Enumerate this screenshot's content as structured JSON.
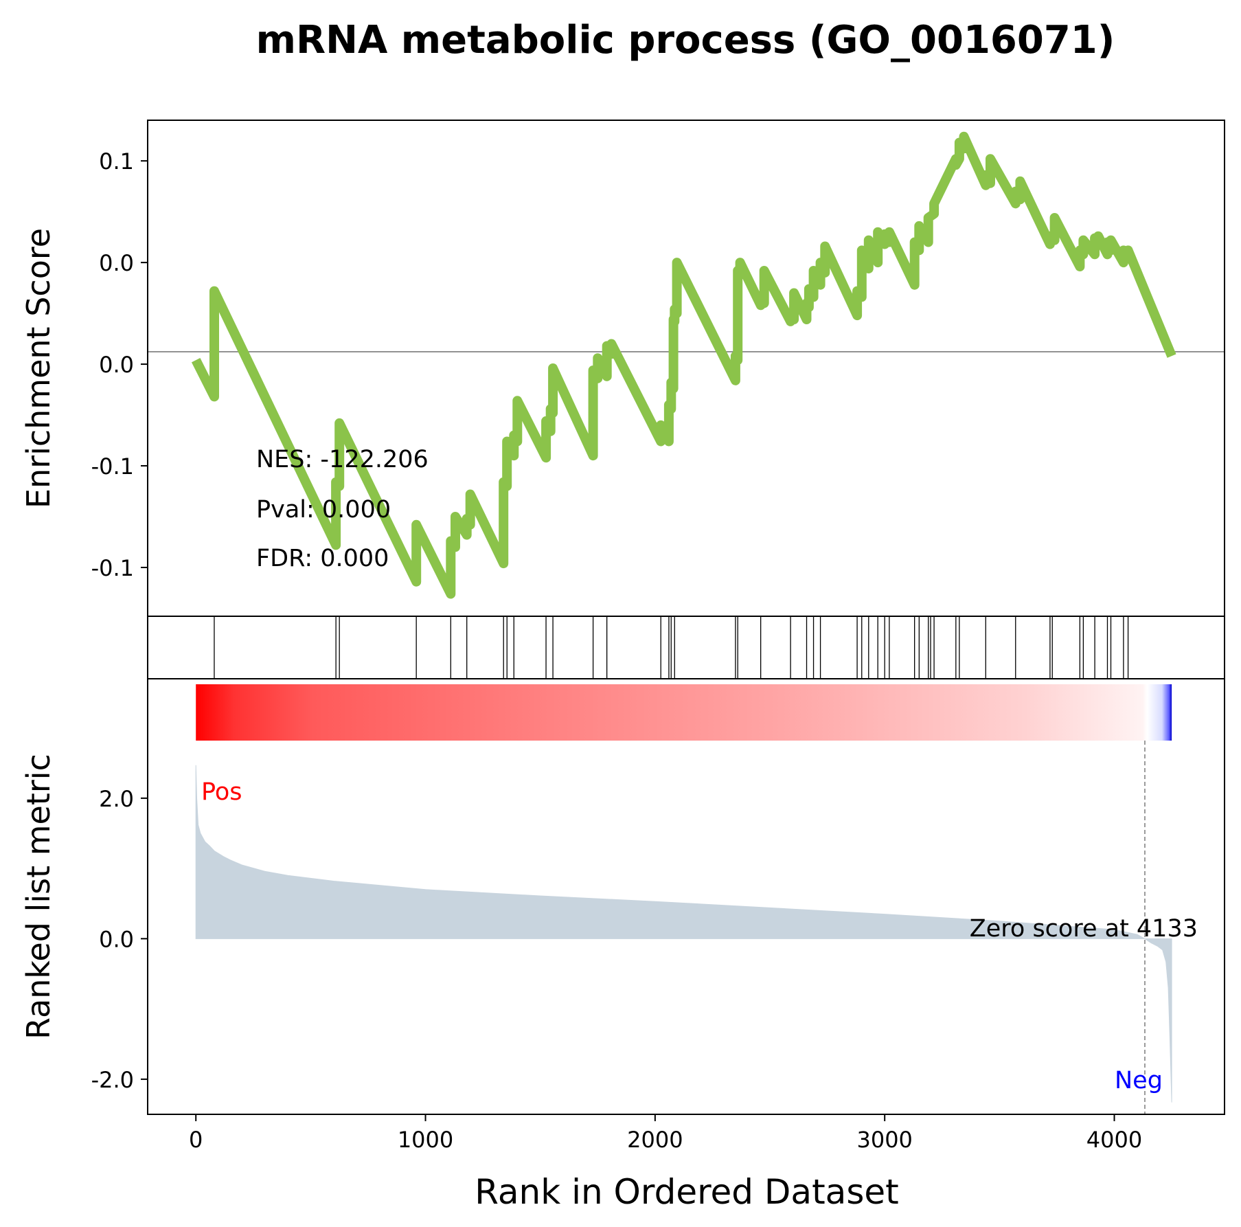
{
  "chart_data": {
    "type": "line",
    "title": "mRNA metabolic process (GO_0016071)",
    "es_panel": {
      "ylabel": "Enrichment Score",
      "ytick_labels": [
        "0.1",
        "0.0",
        "0.0",
        "-0.1",
        "-0.1"
      ],
      "ytick_values": [
        0.1,
        0.05,
        0.0,
        -0.05,
        -0.1
      ],
      "ylim": [
        -0.124,
        0.12
      ],
      "zero_line": 0.0,
      "line_color": "#8bc34a",
      "es_curve": {
        "x": [
          0,
          80,
          80,
          610,
          610,
          625,
          625,
          960,
          960,
          1110,
          1110,
          1130,
          1130,
          1180,
          1180,
          1195,
          1195,
          1340,
          1340,
          1355,
          1355,
          1385,
          1385,
          1400,
          1400,
          1525,
          1525,
          1545,
          1545,
          1555,
          1555,
          1730,
          1730,
          1750,
          1750,
          1790,
          1790,
          1810,
          1810,
          2025,
          2025,
          2060,
          2060,
          2070,
          2070,
          2080,
          2080,
          2085,
          2085,
          2095,
          2095,
          2350,
          2350,
          2360,
          2360,
          2370,
          2370,
          2460,
          2460,
          2475,
          2475,
          2590,
          2590,
          2605,
          2605,
          2660,
          2660,
          2670,
          2670,
          2690,
          2690,
          2720,
          2720,
          2740,
          2740,
          2880,
          2880,
          2900,
          2900,
          2930,
          2930,
          2970,
          2970,
          3000,
          3000,
          3020,
          3020,
          3130,
          3130,
          3150,
          3150,
          3190,
          3190,
          3215,
          3215,
          3310,
          3310,
          3325,
          3325,
          3345,
          3345,
          3440,
          3440,
          3460,
          3460,
          3570,
          3570,
          3590,
          3590,
          3720,
          3720,
          3740,
          3740,
          3850,
          3850,
          3865,
          3865,
          3915,
          3915,
          3930,
          3930,
          3970,
          3970,
          3985,
          3985,
          4040,
          4040,
          4060,
          4060,
          4250
        ],
        "y": [
          0.002,
          -0.016,
          0.036,
          -0.089,
          -0.058,
          -0.06,
          -0.029,
          -0.107,
          -0.079,
          -0.113,
          -0.087,
          -0.09,
          -0.075,
          -0.084,
          -0.076,
          -0.079,
          -0.064,
          -0.098,
          -0.058,
          -0.06,
          -0.038,
          -0.045,
          -0.035,
          -0.038,
          -0.018,
          -0.046,
          -0.028,
          -0.033,
          -0.022,
          -0.024,
          -0.002,
          -0.045,
          -0.003,
          -0.007,
          0.003,
          -0.006,
          0.009,
          0.005,
          0.01,
          -0.038,
          -0.03,
          -0.038,
          -0.02,
          -0.022,
          -0.009,
          -0.012,
          0.022,
          0.021,
          0.027,
          0.025,
          0.05,
          -0.008,
          0.004,
          0.002,
          0.046,
          0.044,
          0.05,
          0.029,
          0.031,
          0.03,
          0.046,
          0.021,
          0.024,
          0.022,
          0.035,
          0.022,
          0.03,
          0.028,
          0.037,
          0.033,
          0.046,
          0.039,
          0.05,
          0.045,
          0.058,
          0.024,
          0.036,
          0.033,
          0.056,
          0.047,
          0.061,
          0.05,
          0.065,
          0.059,
          0.064,
          0.06,
          0.065,
          0.039,
          0.06,
          0.056,
          0.068,
          0.06,
          0.072,
          0.074,
          0.079,
          0.101,
          0.098,
          0.101,
          0.109,
          0.106,
          0.112,
          0.088,
          0.093,
          0.089,
          0.101,
          0.079,
          0.085,
          0.081,
          0.09,
          0.059,
          0.063,
          0.061,
          0.072,
          0.048,
          0.056,
          0.054,
          0.061,
          0.054,
          0.062,
          0.059,
          0.063,
          0.054,
          0.06,
          0.056,
          0.061,
          0.05,
          0.056,
          0.054,
          0.056,
          0.004
        ]
      },
      "annotations": [
        {
          "text": "NES: -122.206"
        },
        {
          "text": "Pval: 0.000"
        },
        {
          "text": "FDR: 0.000"
        }
      ]
    },
    "hits": [
      80,
      610,
      625,
      960,
      1110,
      1180,
      1340,
      1355,
      1385,
      1525,
      1555,
      1730,
      1790,
      2025,
      2060,
      2070,
      2085,
      2350,
      2360,
      2460,
      2590,
      2660,
      2690,
      2720,
      2880,
      2900,
      2930,
      2970,
      3000,
      3020,
      3130,
      3150,
      3190,
      3200,
      3215,
      3310,
      3325,
      3440,
      3570,
      3720,
      3730,
      3850,
      3865,
      3915,
      3970,
      3985,
      4040,
      4060
    ],
    "ranked_panel": {
      "ylabel": "Ranked list metric",
      "xlabel": "Rank in Ordered Dataset",
      "xlim": [
        -210,
        4480
      ],
      "xtick_values": [
        0,
        1000,
        2000,
        3000,
        4000
      ],
      "xtick_labels": [
        "0",
        "1000",
        "2000",
        "3000",
        "4000"
      ],
      "ylim": [
        -2.5,
        3.7
      ],
      "ytick_values": [
        2.0,
        0.0,
        -2.0
      ],
      "ytick_labels": [
        "2.0",
        "0.0",
        "-2.0"
      ],
      "fill_color": "#c8d4de",
      "metric": {
        "x": [
          0,
          4,
          10,
          20,
          40,
          60,
          80,
          120,
          150,
          200,
          300,
          400,
          600,
          800,
          1000,
          1500,
          2000,
          2500,
          3000,
          3500,
          4000,
          4100,
          4133,
          4160,
          4190,
          4210,
          4225,
          4235,
          4242,
          4250
        ],
        "y": [
          2.47,
          2.0,
          1.62,
          1.5,
          1.38,
          1.32,
          1.25,
          1.17,
          1.12,
          1.05,
          0.96,
          0.9,
          0.82,
          0.76,
          0.7,
          0.61,
          0.53,
          0.44,
          0.35,
          0.25,
          0.13,
          0.06,
          0.0,
          -0.06,
          -0.11,
          -0.16,
          -0.33,
          -0.7,
          -1.4,
          -2.33
        ]
      },
      "zero_score_rank": 4133,
      "zero_score_label": "Zero score at 4133",
      "pos_label": "Pos",
      "neg_label": "Neg",
      "pos_color": "#ff0000",
      "neg_color": "#0000ff"
    }
  }
}
